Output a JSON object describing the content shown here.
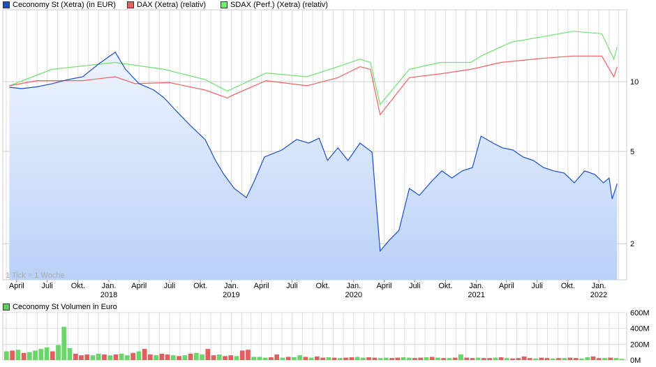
{
  "legend": [
    {
      "label": "Ceconomy St (Xetra) (in EUR)",
      "color": "#1a4fc4"
    },
    {
      "label": "DAX (Xetra) (relativ)",
      "color": "#f06060"
    },
    {
      "label": "SDAX (Perf.) (Xetra) (relativ)",
      "color": "#60e060"
    }
  ],
  "volume_legend": {
    "label": "Ceconomy St Volumen in Euro",
    "color": "#60d060"
  },
  "tick_note": "1 Tick = 1 Woche",
  "chart_data": [
    {
      "type": "line",
      "scale": "log",
      "y_ticks": [
        10,
        5,
        2
      ],
      "x_ticks": [
        {
          "label": "April",
          "date": "2017-04-01"
        },
        {
          "label": "Juli",
          "date": "2017-07-01"
        },
        {
          "label": "Okt.",
          "date": "2017-10-01"
        },
        {
          "label": "Jan.",
          "year": "2018",
          "date": "2018-01-01"
        },
        {
          "label": "April",
          "date": "2018-04-01"
        },
        {
          "label": "Juli",
          "date": "2018-07-01"
        },
        {
          "label": "Okt.",
          "date": "2018-10-01"
        },
        {
          "label": "Jan.",
          "year": "2019",
          "date": "2019-01-01"
        },
        {
          "label": "April",
          "date": "2019-04-01"
        },
        {
          "label": "Juli",
          "date": "2019-07-01"
        },
        {
          "label": "Okt.",
          "date": "2019-10-01"
        },
        {
          "label": "Jan.",
          "year": "2020",
          "date": "2020-01-01"
        },
        {
          "label": "April",
          "date": "2020-04-01"
        },
        {
          "label": "Juli",
          "date": "2020-07-01"
        },
        {
          "label": "Okt.",
          "date": "2020-10-01"
        },
        {
          "label": "Jan.",
          "year": "2021",
          "date": "2021-01-01"
        },
        {
          "label": "April",
          "date": "2021-04-01"
        },
        {
          "label": "Juli",
          "date": "2021-07-01"
        },
        {
          "label": "Okt.",
          "date": "2021-10-01"
        },
        {
          "label": "Jan.",
          "year": "2022",
          "date": "2022-01-01"
        }
      ],
      "grid": true,
      "series": [
        {
          "name": "Ceconomy St (Xetra) (in EUR)",
          "points": [
            [
              "2017-03-10",
              9.46
            ],
            [
              "2017-04-15",
              9.33
            ],
            [
              "2017-06-01",
              9.5
            ],
            [
              "2017-07-15",
              9.79
            ],
            [
              "2017-09-01",
              10.2
            ],
            [
              "2017-10-15",
              10.5
            ],
            [
              "2017-12-01",
              11.9
            ],
            [
              "2018-01-20",
              13.4
            ],
            [
              "2018-02-20",
              11.3
            ],
            [
              "2018-04-01",
              9.8
            ],
            [
              "2018-05-15",
              9.2
            ],
            [
              "2018-06-15",
              8.5
            ],
            [
              "2018-07-20",
              7.5
            ],
            [
              "2018-09-01",
              6.46
            ],
            [
              "2018-10-15",
              5.63
            ],
            [
              "2018-11-15",
              4.57
            ],
            [
              "2018-12-10",
              3.98
            ],
            [
              "2019-01-10",
              3.46
            ],
            [
              "2019-02-15",
              3.16
            ],
            [
              "2019-03-10",
              3.71
            ],
            [
              "2019-04-10",
              4.73
            ],
            [
              "2019-06-01",
              5.07
            ],
            [
              "2019-07-15",
              5.63
            ],
            [
              "2019-08-20",
              5.43
            ],
            [
              "2019-09-20",
              5.7
            ],
            [
              "2019-10-15",
              4.57
            ],
            [
              "2019-11-15",
              5.18
            ],
            [
              "2019-12-15",
              4.57
            ],
            [
              "2020-01-20",
              5.43
            ],
            [
              "2020-02-25",
              4.96
            ],
            [
              "2020-03-20",
              1.86
            ],
            [
              "2020-04-15",
              2.06
            ],
            [
              "2020-05-15",
              2.28
            ],
            [
              "2020-06-15",
              3.46
            ],
            [
              "2020-07-15",
              3.23
            ],
            [
              "2020-08-20",
              3.71
            ],
            [
              "2020-09-20",
              4.12
            ],
            [
              "2020-10-20",
              3.84
            ],
            [
              "2020-11-20",
              4.12
            ],
            [
              "2020-12-20",
              4.26
            ],
            [
              "2021-01-15",
              5.82
            ],
            [
              "2021-02-20",
              5.43
            ],
            [
              "2021-03-20",
              5.18
            ],
            [
              "2021-04-20",
              5.07
            ],
            [
              "2021-05-20",
              4.73
            ],
            [
              "2021-06-20",
              4.57
            ],
            [
              "2021-07-20",
              4.26
            ],
            [
              "2021-08-20",
              4.12
            ],
            [
              "2021-09-20",
              4.03
            ],
            [
              "2021-10-20",
              3.66
            ],
            [
              "2021-11-20",
              4.12
            ],
            [
              "2021-12-20",
              3.98
            ],
            [
              "2022-01-15",
              3.66
            ],
            [
              "2022-02-01",
              3.84
            ],
            [
              "2022-02-10",
              3.12
            ],
            [
              "2022-02-25",
              3.63
            ]
          ]
        },
        {
          "name": "DAX (Xetra) (relativ)",
          "points": [
            [
              "2017-03-10",
              9.6
            ],
            [
              "2017-06-01",
              10.1
            ],
            [
              "2017-10-15",
              10.1
            ],
            [
              "2018-01-20",
              10.5
            ],
            [
              "2018-03-20",
              9.8
            ],
            [
              "2018-07-01",
              9.9
            ],
            [
              "2018-10-15",
              9.2
            ],
            [
              "2018-12-20",
              8.5
            ],
            [
              "2019-01-10",
              8.8
            ],
            [
              "2019-04-15",
              10.1
            ],
            [
              "2019-08-15",
              9.6
            ],
            [
              "2019-11-15",
              10.4
            ],
            [
              "2020-01-20",
              11.6
            ],
            [
              "2020-02-20",
              11.3
            ],
            [
              "2020-03-20",
              7.2
            ],
            [
              "2020-06-15",
              10.4
            ],
            [
              "2020-09-15",
              10.8
            ],
            [
              "2020-12-15",
              11.3
            ],
            [
              "2021-03-15",
              12.1
            ],
            [
              "2021-07-15",
              12.6
            ],
            [
              "2021-10-15",
              12.9
            ],
            [
              "2022-01-10",
              12.9
            ],
            [
              "2022-02-15",
              10.5
            ],
            [
              "2022-02-25",
              11.6
            ]
          ]
        },
        {
          "name": "SDAX (Perf.) (Xetra) (relativ)",
          "points": [
            [
              "2017-03-10",
              9.6
            ],
            [
              "2017-07-15",
              11.3
            ],
            [
              "2018-01-20",
              12.1
            ],
            [
              "2018-06-15",
              11.3
            ],
            [
              "2018-10-15",
              10.2
            ],
            [
              "2018-12-20",
              9.1
            ],
            [
              "2019-04-15",
              10.9
            ],
            [
              "2019-08-15",
              10.5
            ],
            [
              "2019-11-15",
              11.6
            ],
            [
              "2020-01-20",
              12.5
            ],
            [
              "2020-02-20",
              12.1
            ],
            [
              "2020-03-20",
              7.96
            ],
            [
              "2020-06-15",
              11.3
            ],
            [
              "2020-09-15",
              12.1
            ],
            [
              "2020-12-15",
              12.1
            ],
            [
              "2021-01-15",
              12.9
            ],
            [
              "2021-04-15",
              14.8
            ],
            [
              "2021-07-15",
              15.6
            ],
            [
              "2021-10-15",
              16.5
            ],
            [
              "2022-01-10",
              16.1
            ],
            [
              "2022-02-15",
              12.5
            ],
            [
              "2022-02-25",
              14.1
            ]
          ]
        }
      ]
    },
    {
      "type": "bar",
      "title": "Ceconomy St Volumen in Euro",
      "y_ticks": [
        "0M",
        "200M",
        "400M",
        "600M"
      ],
      "ylim": [
        0,
        600
      ],
      "values": [
        110,
        120,
        130,
        90,
        100,
        120,
        140,
        160,
        110,
        190,
        420,
        150,
        80,
        60,
        70,
        60,
        80,
        70,
        60,
        70,
        80,
        60,
        90,
        110,
        140,
        70,
        60,
        80,
        70,
        60,
        50,
        60,
        80,
        90,
        70,
        140,
        60,
        70,
        50,
        60,
        50,
        120,
        130,
        40,
        40,
        30,
        35,
        70,
        30,
        40,
        35,
        60,
        40,
        30,
        45,
        30,
        35,
        30,
        25,
        30,
        35,
        40,
        30,
        35,
        30,
        25,
        30,
        25,
        30,
        35,
        30,
        25,
        30,
        35,
        40,
        30,
        25,
        25,
        30,
        70,
        30,
        25,
        30,
        25,
        25,
        30,
        35,
        25,
        20,
        25,
        45,
        25,
        20,
        30,
        25,
        20,
        25,
        25,
        30,
        25,
        20,
        35,
        45,
        25,
        25,
        30,
        25,
        15
      ],
      "up": [
        1,
        0,
        1,
        0,
        1,
        1,
        1,
        1,
        0,
        1,
        1,
        1,
        0,
        0,
        0,
        1,
        1,
        0,
        1,
        0,
        1,
        1,
        0,
        1,
        0,
        0,
        1,
        0,
        0,
        1,
        0,
        1,
        0,
        1,
        1,
        0,
        0,
        1,
        0,
        0,
        1,
        0,
        0,
        1,
        1,
        1,
        0,
        0,
        1,
        0,
        1,
        1,
        0,
        1,
        0,
        0,
        1,
        0,
        1,
        0,
        0,
        1,
        1,
        0,
        0,
        1,
        1,
        0,
        0,
        1,
        1,
        0,
        0,
        1,
        0,
        1,
        0,
        1,
        0,
        1,
        0,
        0,
        1,
        0,
        0,
        1,
        0,
        1,
        0,
        0,
        0,
        0,
        1,
        0,
        0,
        1,
        0,
        1,
        0,
        0,
        1,
        1,
        0,
        0,
        1,
        0,
        1,
        1
      ]
    }
  ]
}
